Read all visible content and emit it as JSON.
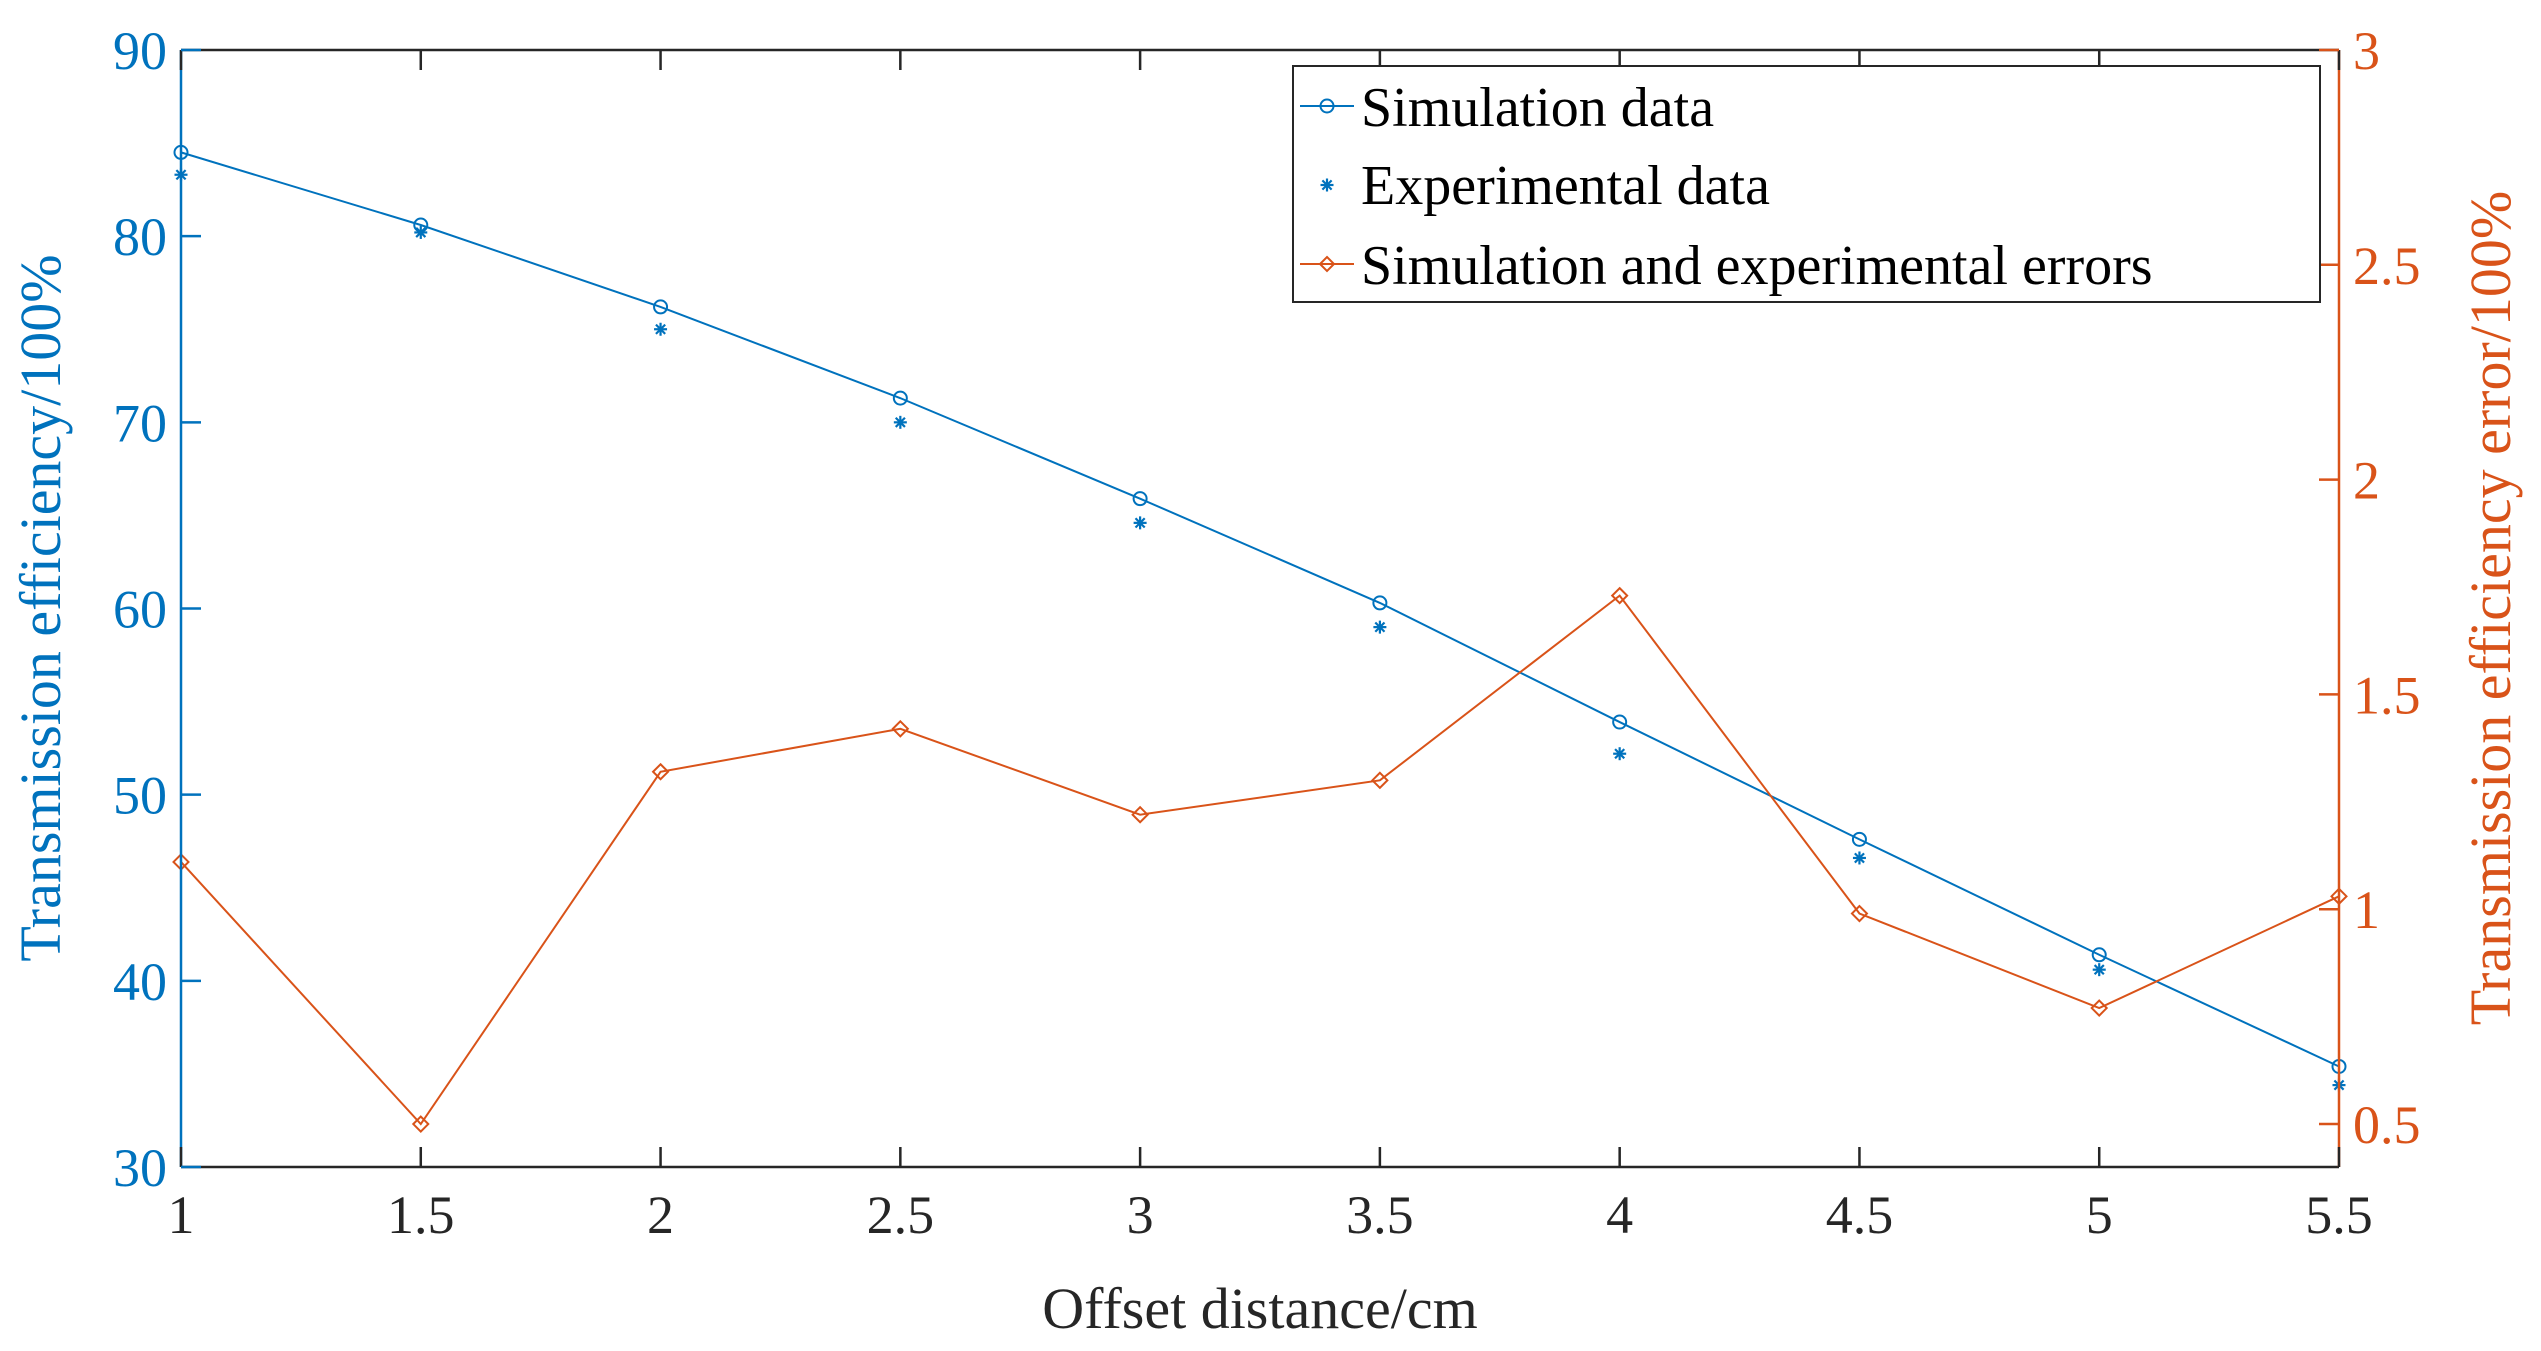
{
  "chart_data": {
    "type": "line",
    "title": "",
    "xlabel": "Offset distance/cm",
    "ylabel_left": "Transmission efficiency/100%",
    "ylabel_right": "Transmission efficiency error/100%",
    "xlim": [
      1,
      5.5
    ],
    "ylim_left": [
      30,
      90
    ],
    "ylim_right": [
      0.4,
      3
    ],
    "x_ticks": [
      "1",
      "1.5",
      "2",
      "2.5",
      "3",
      "3.5",
      "4",
      "4.5",
      "5",
      "5.5"
    ],
    "y_left_ticks": [
      "30",
      "40",
      "50",
      "60",
      "70",
      "80",
      "90"
    ],
    "y_right_ticks": [
      "0.5",
      "1",
      "1.5",
      "2",
      "2.5",
      "3"
    ],
    "x": [
      1,
      1.5,
      2,
      2.5,
      3,
      3.5,
      4,
      4.5,
      5,
      5.5
    ],
    "legend_position": "top-right",
    "series": [
      {
        "name": "Simulation data",
        "axis": "left",
        "marker": "circle",
        "line": true,
        "color": "#0072bd",
        "values": [
          84.5,
          80.6,
          76.2,
          71.3,
          65.9,
          60.3,
          53.9,
          47.6,
          41.4,
          35.4
        ]
      },
      {
        "name": "Experimental data",
        "axis": "left",
        "marker": "star",
        "line": false,
        "color": "#0072bd",
        "values": [
          83.3,
          80.2,
          75.0,
          70.0,
          64.6,
          59.0,
          52.2,
          46.6,
          40.6,
          34.4
        ]
      },
      {
        "name": "Simulation and experimental errors",
        "axis": "right",
        "marker": "diamond",
        "line": true,
        "color": "#d95319",
        "values": [
          1.11,
          0.5,
          1.32,
          1.42,
          1.22,
          1.3,
          1.73,
          0.99,
          0.77,
          1.03
        ]
      }
    ]
  }
}
